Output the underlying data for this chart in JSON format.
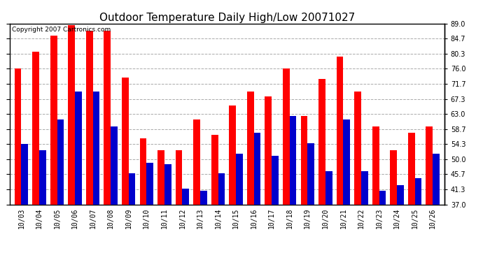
{
  "title": "Outdoor Temperature Daily High/Low 20071027",
  "copyright": "Copyright 2007 Cartronics.com",
  "dates": [
    "10/03",
    "10/04",
    "10/05",
    "10/06",
    "10/07",
    "10/08",
    "10/09",
    "10/10",
    "10/11",
    "10/12",
    "10/13",
    "10/14",
    "10/15",
    "10/16",
    "10/17",
    "10/18",
    "10/19",
    "10/20",
    "10/21",
    "10/22",
    "10/23",
    "10/24",
    "10/25",
    "10/26"
  ],
  "highs": [
    76.0,
    81.0,
    85.5,
    88.5,
    87.0,
    87.0,
    73.5,
    56.0,
    52.5,
    52.5,
    61.5,
    57.0,
    65.5,
    69.5,
    68.0,
    76.0,
    62.5,
    73.0,
    79.5,
    69.5,
    59.5,
    52.5,
    57.5,
    59.5
  ],
  "lows": [
    54.3,
    52.5,
    61.5,
    69.5,
    69.5,
    59.5,
    46.0,
    49.0,
    48.5,
    41.5,
    41.0,
    46.0,
    51.5,
    57.5,
    51.0,
    62.5,
    54.5,
    46.5,
    61.5,
    46.5,
    41.0,
    42.5,
    44.5,
    51.5
  ],
  "high_color": "#ff0000",
  "low_color": "#0000cc",
  "bg_color": "#ffffff",
  "grid_color": "#aaaaaa",
  "ylim_min": 37.0,
  "ylim_max": 89.0,
  "yticks": [
    37.0,
    41.3,
    45.7,
    50.0,
    54.3,
    58.7,
    63.0,
    67.3,
    71.7,
    76.0,
    80.3,
    84.7,
    89.0
  ],
  "bar_width": 0.38,
  "title_fontsize": 11,
  "tick_fontsize": 7,
  "copyright_fontsize": 6.5
}
